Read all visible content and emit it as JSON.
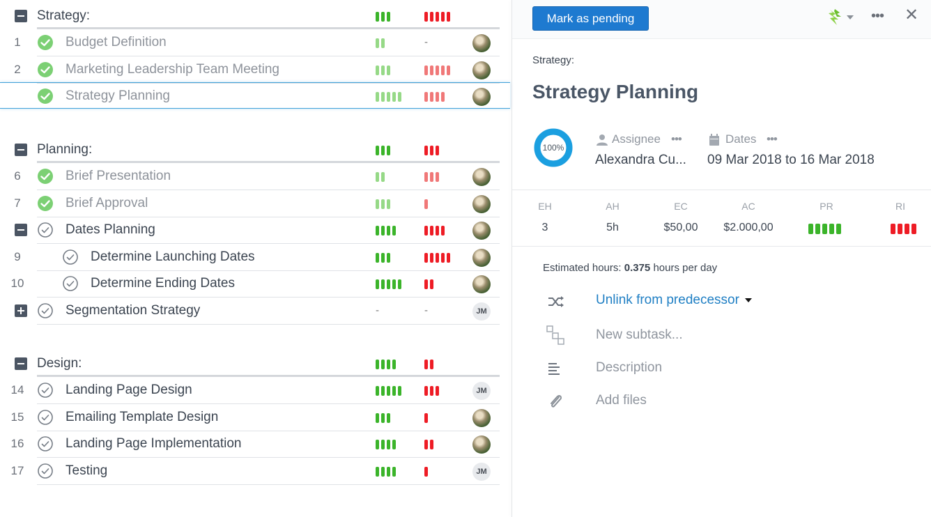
{
  "colors": {
    "green_check": "#7cd074",
    "pr_done": "#96d987",
    "pr_active": "#3bb42a",
    "ri_done": "#f07878",
    "ri_active": "#ee1c25",
    "primary_button": "#1e7ad0",
    "progress_ring": "#1b9fe0",
    "link": "#1f7fc4"
  },
  "task_list": {
    "groups": [
      {
        "title": "Strategy:",
        "pr": 3,
        "ri": 5,
        "rows": [
          {
            "num": "1",
            "label": "Budget Definition",
            "status": "done",
            "pr": 2,
            "ri": 0,
            "ri_text": "-",
            "avatar": "photo",
            "indent": 0
          },
          {
            "num": "2",
            "label": "Marketing Leadership Team Meeting",
            "status": "done",
            "pr": 3,
            "ri": 5,
            "avatar": "photo",
            "indent": 0
          },
          {
            "num": "",
            "label": "Strategy Planning",
            "status": "done",
            "pr": 5,
            "ri": 4,
            "avatar": "photo",
            "indent": 0,
            "selected": true
          }
        ]
      },
      {
        "title": "Planning:",
        "pr": 3,
        "ri": 3,
        "rows": [
          {
            "num": "6",
            "label": "Brief Presentation",
            "status": "done",
            "pr": 2,
            "ri": 3,
            "avatar": "photo",
            "indent": 0
          },
          {
            "num": "7",
            "label": "Brief Approval",
            "status": "done",
            "pr": 3,
            "ri": 1,
            "avatar": "photo",
            "indent": 0
          },
          {
            "num": "",
            "label": "Dates Planning",
            "status": "todo",
            "pr": 4,
            "ri": 4,
            "avatar": "photo",
            "indent": 0,
            "toggle": "minus"
          },
          {
            "num": "9",
            "label": "Determine Launching Dates",
            "status": "todo",
            "pr": 3,
            "ri": 5,
            "avatar": "photo",
            "indent": 1
          },
          {
            "num": "10",
            "label": "Determine Ending Dates",
            "status": "todo",
            "pr": 5,
            "ri": 2,
            "avatar": "photo",
            "indent": 1
          },
          {
            "num": "",
            "label": "Segmentation Strategy",
            "status": "todo",
            "pr": 0,
            "ri": 0,
            "pr_text": "-",
            "ri_text": "-",
            "avatar": "JM",
            "indent": 0,
            "toggle": "plus"
          }
        ]
      },
      {
        "title": "Design:",
        "pr": 4,
        "ri": 2,
        "rows": [
          {
            "num": "14",
            "label": "Landing Page Design",
            "status": "todo",
            "pr": 5,
            "ri": 3,
            "avatar": "JM",
            "indent": 0
          },
          {
            "num": "15",
            "label": "Emailing Template Design",
            "status": "todo",
            "pr": 3,
            "ri": 1,
            "avatar": "photo",
            "indent": 0
          },
          {
            "num": "16",
            "label": "Landing Page Implementation",
            "status": "todo",
            "pr": 4,
            "ri": 2,
            "avatar": "photo",
            "indent": 0
          },
          {
            "num": "17",
            "label": "Testing",
            "status": "todo",
            "pr": 4,
            "ri": 1,
            "avatar": "JM",
            "indent": 0
          }
        ]
      }
    ]
  },
  "detail": {
    "mark_button": "Mark as pending",
    "parent": "Strategy:",
    "title": "Strategy Planning",
    "progress_label": "100%",
    "progress": 1.0,
    "assignee_header": "Assignee",
    "assignee_value": "Alexandra Cu...",
    "dates_header": "Dates",
    "dates_value": "09 Mar 2018 to 16 Mar 2018",
    "more_glyph": "•••",
    "close_glyph": "✕",
    "stats": {
      "eh_label": "EH",
      "eh_value": "3",
      "ah_label": "AH",
      "ah_value": "5h",
      "ec_label": "EC",
      "ec_value": "$50,00",
      "ac_label": "AC",
      "ac_value": "$2.000,00",
      "pr_label": "PR",
      "pr_value": 5,
      "ri_label": "RI",
      "ri_value": 4
    },
    "estimated_prefix": "Estimated hours:",
    "estimated_value": "0.375",
    "estimated_suffix": "hours per day",
    "actions": {
      "unlink": "Unlink from predecessor",
      "new_subtask": "New subtask...",
      "description": "Description",
      "add_files": "Add files"
    },
    "icons": {
      "unlink": "shuffle-icon",
      "new_subtask": "subtask-icon",
      "description": "align-left-icon",
      "add_files": "paperclip-icon",
      "assignee": "user-icon",
      "dates": "calendar-icon",
      "priority": "priority-flag-icon",
      "close": "close-icon",
      "more": "more-icon"
    }
  }
}
